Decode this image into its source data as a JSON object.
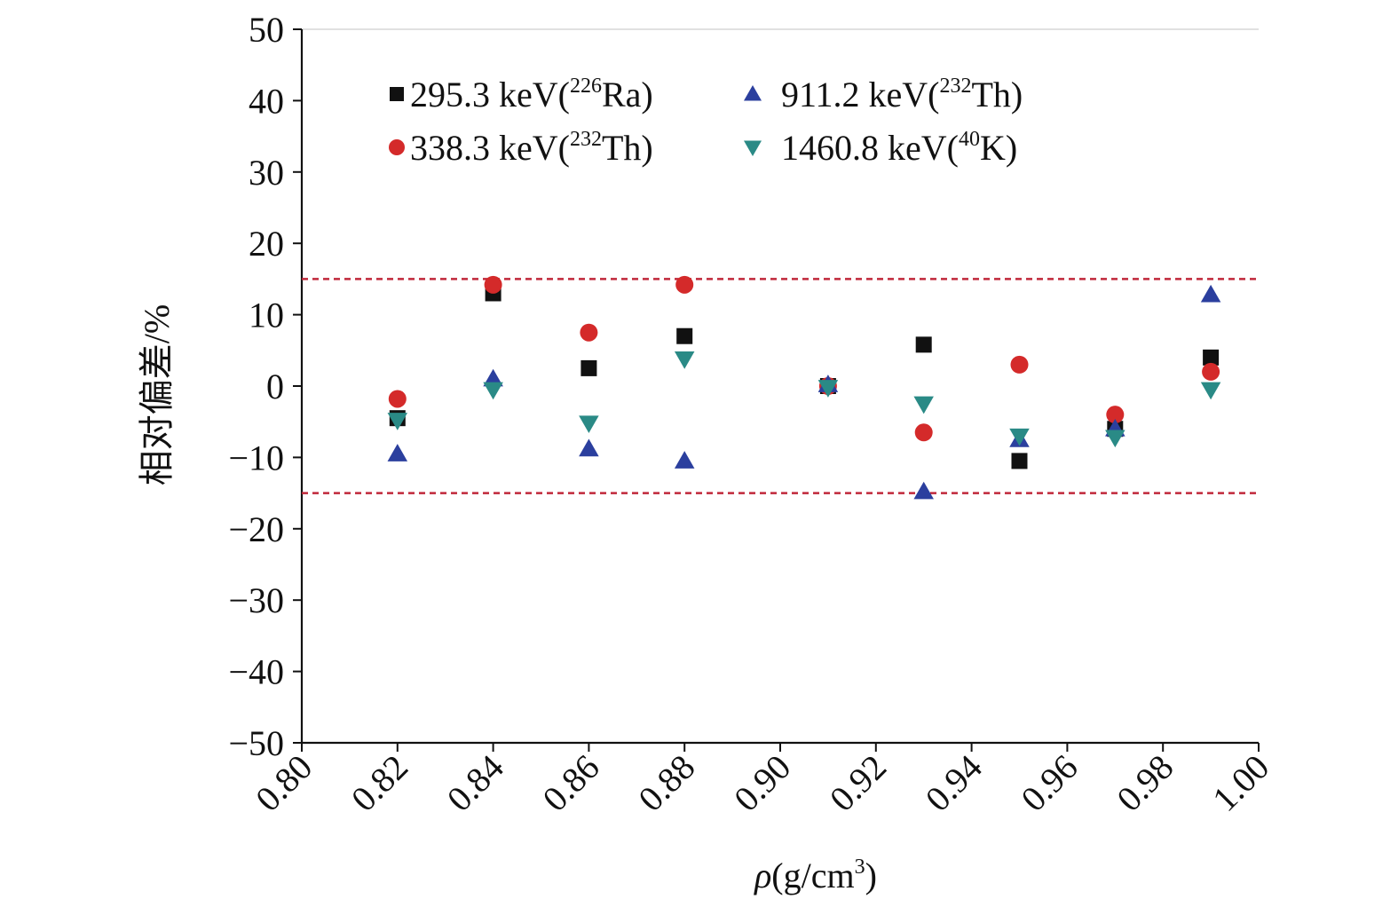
{
  "chart_data": {
    "type": "scatter",
    "title": "",
    "xlabel_symbol": "ρ",
    "xlabel_unit": "(g/cm",
    "xlabel_sup": "3",
    "xlabel_close": ")",
    "ylabel": "相对偏差/%",
    "xlim": [
      0.8,
      1.0
    ],
    "ylim": [
      -50,
      50
    ],
    "x_ticks": [
      "0.80",
      "0.82",
      "0.84",
      "0.86",
      "0.88",
      "0.90",
      "0.92",
      "0.94",
      "0.96",
      "0.98",
      "1.00"
    ],
    "y_ticks": [
      "50",
      "40",
      "30",
      "20",
      "10",
      "0",
      "−10",
      "−20",
      "−30",
      "−40",
      "−50"
    ],
    "y_tick_values": [
      50,
      40,
      30,
      20,
      10,
      0,
      -10,
      -20,
      -30,
      -40,
      -50
    ],
    "x_tick_values": [
      0.8,
      0.82,
      0.84,
      0.86,
      0.88,
      0.9,
      0.92,
      0.94,
      0.96,
      0.98,
      1.0
    ],
    "reference_lines": [
      15,
      -15
    ],
    "reference_line_color": "#c0283a",
    "legend_position": "top-left",
    "series": [
      {
        "name": "295.3 keV(226Ra)",
        "label_pre": "295.3 keV(",
        "label_sup": "226",
        "label_post": "Ra)",
        "marker": "square",
        "color": "#111111",
        "x": [
          0.82,
          0.84,
          0.86,
          0.88,
          0.91,
          0.93,
          0.95,
          0.97,
          0.99
        ],
        "y": [
          -4.5,
          13,
          2.5,
          7,
          0,
          5.8,
          -10.5,
          -6,
          4
        ]
      },
      {
        "name": "338.3 keV(232Th)",
        "label_pre": "338.3 keV(",
        "label_sup": "232",
        "label_post": "Th)",
        "marker": "circle",
        "color": "#d42a2a",
        "x": [
          0.82,
          0.84,
          0.86,
          0.88,
          0.91,
          0.93,
          0.95,
          0.97,
          0.99
        ],
        "y": [
          -1.8,
          14.2,
          7.5,
          14.2,
          0,
          -6.5,
          3,
          -4,
          2
        ]
      },
      {
        "name": "911.2 keV(232Th)",
        "label_pre": "911.2 keV(",
        "label_sup": "232",
        "label_post": "Th)",
        "marker": "triangle-up",
        "color": "#2b3f9e",
        "x": [
          0.82,
          0.84,
          0.86,
          0.88,
          0.91,
          0.93,
          0.95,
          0.97,
          0.99
        ],
        "y": [
          -9.5,
          1,
          -8.8,
          -10.5,
          0.2,
          -14.8,
          -7.5,
          -6,
          12.8
        ]
      },
      {
        "name": "1460.8 keV(40K)",
        "label_pre": "1460.8 keV(",
        "label_sup": "40",
        "label_post": "K)",
        "marker": "triangle-down",
        "color": "#2a8a86",
        "x": [
          0.82,
          0.84,
          0.86,
          0.88,
          0.91,
          0.93,
          0.95,
          0.97,
          0.99
        ],
        "y": [
          -4.8,
          -0.5,
          -5.2,
          3.8,
          -0.2,
          -2.5,
          -7,
          -7.2,
          -0.5
        ]
      }
    ]
  }
}
